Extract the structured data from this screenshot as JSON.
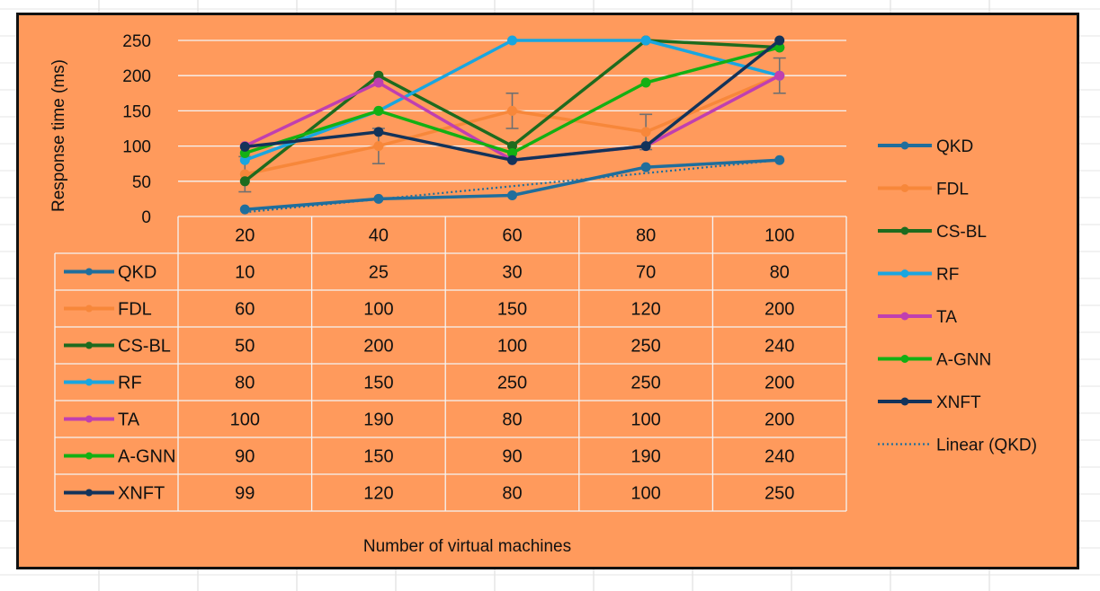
{
  "chart_data": {
    "type": "line",
    "xlabel": "Number of virtual machines",
    "ylabel": "Response time (ms)",
    "categories": [
      "20",
      "40",
      "60",
      "80",
      "100"
    ],
    "ylim": [
      0,
      250
    ],
    "yticks": [
      "0",
      "50",
      "100",
      "150",
      "200",
      "250"
    ],
    "grid": true,
    "legend_position": "right",
    "data_table": true,
    "series": [
      {
        "name": "QKD",
        "values": [
          10,
          25,
          30,
          70,
          80
        ],
        "color": "#1F6E9C"
      },
      {
        "name": "FDL",
        "values": [
          60,
          100,
          150,
          120,
          200
        ],
        "color": "#F7873A"
      },
      {
        "name": "CS-BL",
        "values": [
          50,
          200,
          100,
          250,
          240
        ],
        "color": "#1E6B1E"
      },
      {
        "name": "RF",
        "values": [
          80,
          150,
          250,
          250,
          200
        ],
        "color": "#19A6E0"
      },
      {
        "name": "TA",
        "values": [
          100,
          190,
          80,
          100,
          200
        ],
        "color": "#C03FB0"
      },
      {
        "name": "A-GNN",
        "values": [
          90,
          150,
          90,
          190,
          240
        ],
        "color": "#13B013"
      },
      {
        "name": "XNFT",
        "values": [
          99,
          120,
          80,
          100,
          250
        ],
        "color": "#13335A"
      }
    ],
    "trendline": {
      "name": "Linear (QKD)",
      "of": "QKD",
      "type": "linear",
      "style": "dotted",
      "color": "#1F6E9C"
    },
    "error_bars": {
      "series": "FDL",
      "plus_minus": 25
    }
  }
}
